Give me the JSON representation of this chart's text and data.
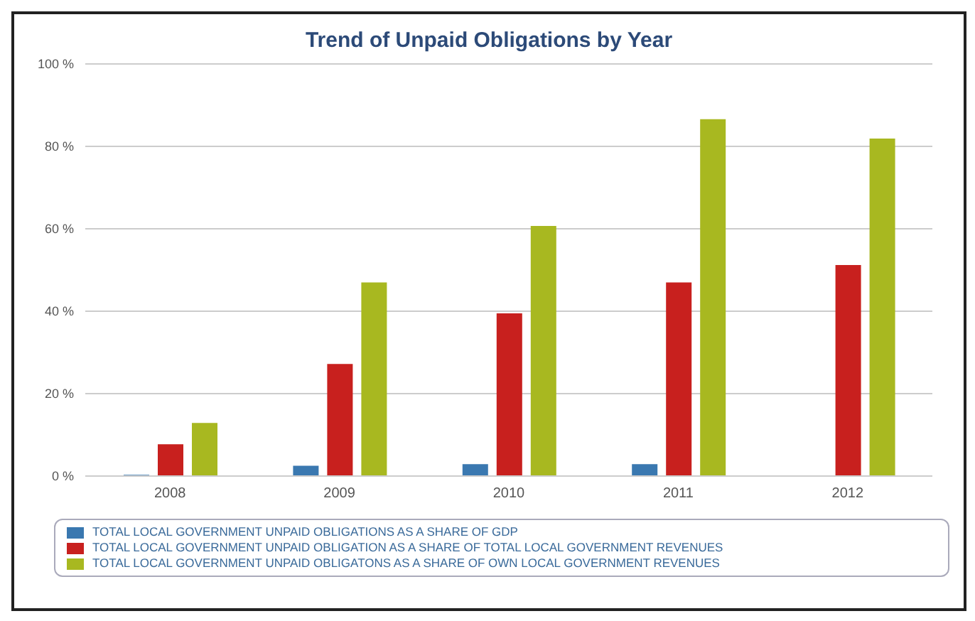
{
  "chart_data": {
    "type": "bar",
    "title": "Trend of Unpaid Obligations by Year",
    "categories": [
      "2008",
      "2009",
      "2010",
      "2011",
      "2012"
    ],
    "series": [
      {
        "name": "TOTAL LOCAL GOVERNMENT UNPAID OBLIGATIONS AS A SHARE OF GDP",
        "color": "#3a78b0",
        "values": [
          0.3,
          2.5,
          2.9,
          2.9,
          null
        ]
      },
      {
        "name": "TOTAL LOCAL GOVERNMENT UNPAID OBLIGATION AS A SHARE OF TOTAL LOCAL GOVERNMENT REVENUES",
        "color": "#c8201e",
        "values": [
          7.7,
          27.2,
          39.5,
          47,
          51.2
        ]
      },
      {
        "name": "TOTAL LOCAL GOVERNMENT UNPAID OBLIGATONS AS A SHARE OF OWN LOCAL GOVERNMENT REVENUES",
        "color": "#a8b820",
        "values": [
          12.9,
          47,
          60.7,
          86.6,
          81.9
        ]
      }
    ],
    "ylim": [
      0,
      100
    ],
    "yticks": [
      {
        "value": 0,
        "label": "0 %"
      },
      {
        "value": 20,
        "label": "20 %"
      },
      {
        "value": 40,
        "label": "40 %"
      },
      {
        "value": 60,
        "label": "60 %"
      },
      {
        "value": 80,
        "label": "80 %"
      },
      {
        "value": 100,
        "label": "100 %"
      }
    ],
    "grid": "y",
    "legend": "bottom"
  }
}
